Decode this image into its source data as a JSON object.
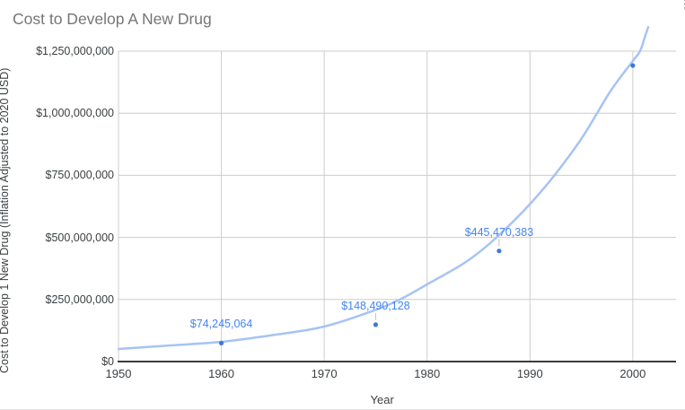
{
  "title": "Cost to Develop A New Drug",
  "options_menu_icon": "vertical-ellipsis-icon",
  "menu_glyph": "⋮",
  "chart_data": {
    "type": "scatter",
    "title": "Cost to Develop A New Drug",
    "xlabel": "Year",
    "ylabel": "Cost to Develop 1 New Drug (Inflation Adjusted to 2020 USD)",
    "xlim": [
      1950,
      2004.2
    ],
    "ylim": [
      0,
      1250000000
    ],
    "grid": true,
    "legend_position": "none",
    "x_ticks": [
      1950,
      1960,
      1970,
      1980,
      1990,
      2000
    ],
    "x_tick_labels": [
      "1950",
      "1960",
      "1970",
      "1980",
      "1990",
      "2000"
    ],
    "y_ticks": [
      0,
      250000000,
      500000000,
      750000000,
      1000000000,
      1250000000
    ],
    "y_tick_labels": [
      "$0",
      "$250,000,000",
      "$500,000,000",
      "$750,000,000",
      "$1,000,000,000",
      "$1,250,000,000"
    ],
    "points": [
      {
        "year": 1960,
        "value": 74245064,
        "label": "$74,245,064",
        "leader_line": false
      },
      {
        "year": 1975,
        "value": 148490128,
        "label": "$148,490,128",
        "leader_line": true
      },
      {
        "year": 1987,
        "value": 445470383,
        "label": "$445,470,383",
        "leader_line": true
      },
      {
        "year": 2000,
        "value": 1192000000,
        "label": "",
        "leader_line": false
      }
    ],
    "trendline": {
      "type": "exponential",
      "points": [
        [
          1950.0,
          50600000
        ],
        [
          1955.1,
          65000000
        ],
        [
          1960.0,
          79500000
        ],
        [
          1964.7,
          104800000
        ],
        [
          1970.0,
          140900000
        ],
        [
          1975.1,
          209500000
        ],
        [
          1977.5,
          252900000
        ],
        [
          1980.0,
          310700000
        ],
        [
          1983.9,
          404600000
        ],
        [
          1987.0,
          509400000
        ],
        [
          1990.9,
          675600000
        ],
        [
          1994.8,
          885100000
        ],
        [
          1997.8,
          1087400000
        ],
        [
          2000.0,
          1210300000
        ],
        [
          2000.7,
          1250000000
        ],
        [
          2001.2,
          1311000000
        ],
        [
          2001.5,
          1347000000
        ]
      ]
    },
    "colors": {
      "series_point": "#3e78d8",
      "data_label": "#4285f4",
      "trendline": "#a6c3f5",
      "gridline": "#cccccc",
      "axis_line": "#3c3c3c",
      "leader_line": "#c2c2c2",
      "title_text": "#757575",
      "axis_text": "#3c4043"
    }
  }
}
